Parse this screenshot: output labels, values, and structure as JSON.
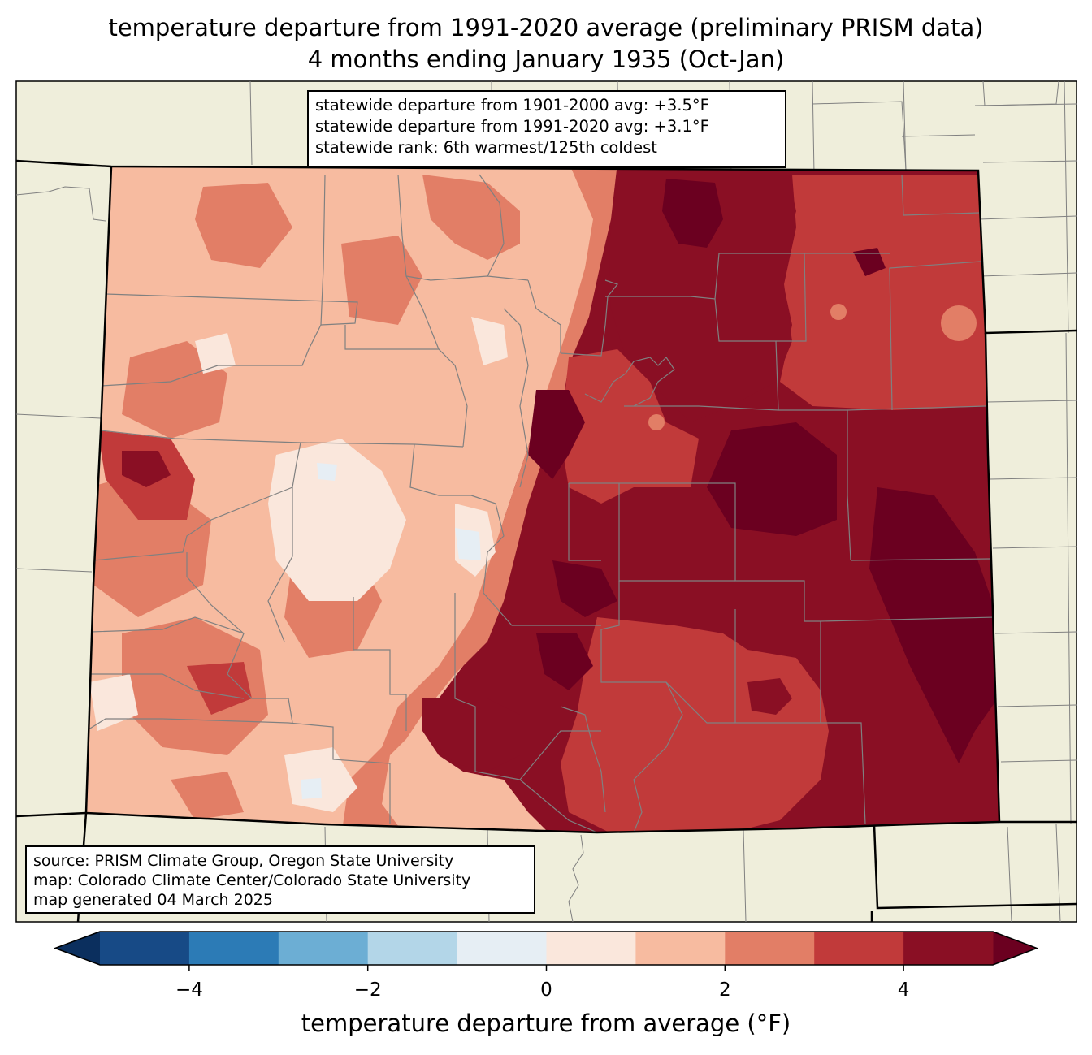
{
  "title_line1": "temperature departure from 1991-2020 average (preliminary PRISM data)",
  "title_line2": "4 months ending January 1935 (Oct-Jan)",
  "stats": {
    "line1": "statewide departure from 1901-2000 avg: +3.5°F",
    "line2": "statewide departure from 1991-2020 avg: +3.1°F",
    "line3": "statewide rank: 6th warmest/125th coldest"
  },
  "source": {
    "line1": "source: PRISM Climate Group, Oregon State University",
    "line2": "map: Colorado Climate Center/Colorado State University",
    "line3": "map generated 04 March 2025"
  },
  "colorbar": {
    "label": "temperature departure from average (°F)",
    "ticks": [
      "−4",
      "−2",
      "0",
      "2",
      "4"
    ],
    "tick_values": [
      -4,
      -2,
      0,
      2,
      4
    ],
    "range": [
      -5,
      5
    ],
    "step": 1,
    "extend": "both",
    "colors": [
      "#174a86",
      "#2c7bb6",
      "#6caed4",
      "#b3d6e8",
      "#e6eef4",
      "#fae7dc",
      "#f7bba0",
      "#e27e66",
      "#c13a3a",
      "#8a0f24"
    ],
    "under_color": "#0b2f5e",
    "over_color": "#6b0020"
  },
  "map_colors": {
    "land_background": "#efeedb",
    "state_border": "#000000",
    "county_border": "#808080"
  }
}
